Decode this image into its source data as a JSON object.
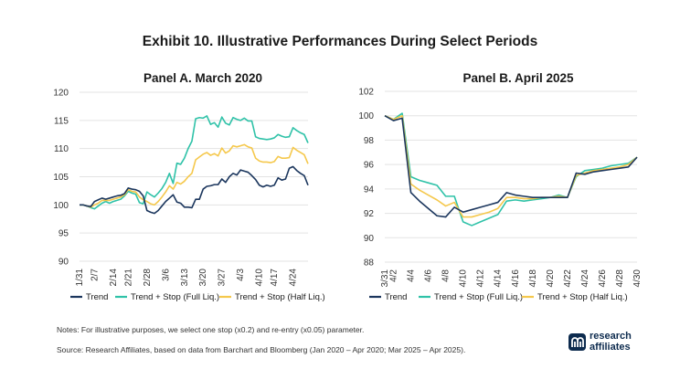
{
  "title": "Exhibit 10. Illustrative Performances During Select Periods",
  "colors": {
    "trend": "#1b365d",
    "full": "#2fc2a8",
    "half": "#f5c84c",
    "grid": "#e3e3e3"
  },
  "legend": {
    "trend": "Trend",
    "full": "Trend + Stop (Full Liq.)",
    "half": "Trend + Stop (Half Liq.)"
  },
  "notes": {
    "line1": "Notes: For illustrative purposes, we select one stop (x0.2) and re-entry (x0.05) parameter.",
    "line2": "Source: Research Affiliates, based on data from Barchart and Bloomberg (Jan 2020 – Apr 2020; Mar 2025 – Apr 2025)."
  },
  "logo": {
    "line1": "research",
    "line2": "affiliates",
    "icon": "research-affiliates-logo-icon"
  },
  "chart_data": [
    {
      "type": "line",
      "title": "Panel A. March 2020",
      "ylim": [
        90,
        120
      ],
      "yticks": [
        90,
        95,
        100,
        105,
        110,
        115,
        120
      ],
      "xticks": [
        {
          "i": 0,
          "label": "1/31"
        },
        {
          "i": 4,
          "label": "2/7"
        },
        {
          "i": 9,
          "label": "2/14"
        },
        {
          "i": 13,
          "label": "2/21"
        },
        {
          "i": 18,
          "label": "2/28"
        },
        {
          "i": 23,
          "label": "3/6"
        },
        {
          "i": 28,
          "label": "3/13"
        },
        {
          "i": 33,
          "label": "3/20"
        },
        {
          "i": 38,
          "label": "3/27"
        },
        {
          "i": 43,
          "label": "4/3"
        },
        {
          "i": 48,
          "label": "4/10"
        },
        {
          "i": 52,
          "label": "4/17"
        },
        {
          "i": 57,
          "label": "4/24"
        }
      ],
      "n": 62,
      "series": [
        {
          "key": "trend",
          "name": "Trend",
          "values": [
            100,
            100,
            99.8,
            99.7,
            100.6,
            100.9,
            101.2,
            101,
            101.2,
            101.4,
            101.6,
            101.7,
            102,
            103,
            102.8,
            102.7,
            102.4,
            101.6,
            99,
            98.7,
            98.5,
            99,
            99.8,
            100.6,
            101.2,
            101.8,
            100.5,
            100.3,
            99.6,
            99.6,
            99.5,
            101,
            101,
            102.8,
            103.3,
            103.4,
            103.6,
            103.6,
            104.6,
            104,
            105,
            105.6,
            105.3,
            106.2,
            106,
            105.8,
            105.2,
            104.5,
            103.5,
            103.2,
            103.5,
            103.3,
            103.5,
            104.8,
            104.4,
            104.6,
            106.5,
            106.8,
            106.1,
            105.6,
            105.2,
            103.5
          ]
        },
        {
          "key": "full",
          "name": "Trend + Stop (Full Liq.)",
          "values": [
            100,
            100,
            99.8,
            99.5,
            99.3,
            99.8,
            100.3,
            100.6,
            100.3,
            100.6,
            100.8,
            101,
            101.6,
            102.4,
            102.1,
            101.9,
            100.4,
            100.2,
            102.3,
            101.8,
            101.4,
            102.1,
            102.9,
            104,
            105.6,
            103.8,
            107.4,
            107.2,
            108.3,
            110,
            111.3,
            115.3,
            115.5,
            115.4,
            115.8,
            114.3,
            114.6,
            113.8,
            115.6,
            114.5,
            114.2,
            115.5,
            115.2,
            115,
            115.4,
            114.9,
            114.9,
            112.1,
            111.8,
            111.7,
            111.6,
            111.7,
            111.9,
            112.5,
            112.2,
            112,
            112.1,
            113.7,
            113.2,
            112.8,
            112.5,
            111
          ]
        },
        {
          "key": "half",
          "name": "Trend + Stop (Half Liq.)",
          "values": [
            100,
            100,
            99.8,
            99.6,
            100,
            100.3,
            100.8,
            100.8,
            100.8,
            101,
            101.2,
            101.4,
            101.8,
            102.7,
            102.4,
            102.3,
            101.4,
            100.9,
            100.6,
            100.2,
            100,
            100.6,
            101.4,
            102.3,
            103.4,
            102.8,
            104,
            103.7,
            104.2,
            105,
            105.6,
            108,
            108.5,
            109,
            109.3,
            108.8,
            109.1,
            108.7,
            110.1,
            109.2,
            109.6,
            110.5,
            110.3,
            110.5,
            110.7,
            110.3,
            110.1,
            108.3,
            107.8,
            107.6,
            107.6,
            107.5,
            107.7,
            108.6,
            108.3,
            108.3,
            108.4,
            110.2,
            109.7,
            109.3,
            108.9,
            107.3
          ]
        }
      ]
    },
    {
      "type": "line",
      "title": "Panel B. April 2025",
      "ylim": [
        88,
        102
      ],
      "yticks": [
        88,
        90,
        92,
        94,
        96,
        98,
        100,
        102
      ],
      "xticks": [
        {
          "i": 0,
          "label": "3/31"
        },
        {
          "i": 1,
          "label": "4/2"
        },
        {
          "i": 3,
          "label": "4/4"
        },
        {
          "i": 5,
          "label": "4/6"
        },
        {
          "i": 7,
          "label": "4/8"
        },
        {
          "i": 9,
          "label": "4/10"
        },
        {
          "i": 11,
          "label": "4/12"
        },
        {
          "i": 13,
          "label": "4/14"
        },
        {
          "i": 15,
          "label": "4/16"
        },
        {
          "i": 17,
          "label": "4/18"
        },
        {
          "i": 19,
          "label": "4/20"
        },
        {
          "i": 21,
          "label": "4/22"
        },
        {
          "i": 23,
          "label": "4/24"
        },
        {
          "i": 25,
          "label": "4/26"
        },
        {
          "i": 27,
          "label": "4/28"
        },
        {
          "i": 29,
          "label": "4/30"
        }
      ],
      "n": 30,
      "series": [
        {
          "key": "trend",
          "name": "Trend",
          "values": [
            100,
            99.6,
            99.8,
            93.7,
            93,
            92.4,
            91.8,
            91.7,
            92.5,
            92.1,
            92.3,
            92.5,
            92.7,
            92.9,
            93.7,
            93.5,
            93.4,
            93.3,
            93.3,
            93.3,
            93.3,
            93.3,
            95.3,
            95.2,
            95.4,
            95.5,
            95.6,
            95.7,
            95.8,
            96.6
          ]
        },
        {
          "key": "full",
          "name": "Trend + Stop (Full Liq.)",
          "values": [
            100,
            99.7,
            100.2,
            95,
            94.7,
            94.5,
            94.3,
            93.4,
            93.4,
            91.3,
            91,
            91.3,
            91.6,
            91.9,
            93,
            93.1,
            93,
            93.1,
            93.2,
            93.3,
            93.5,
            93.3,
            95,
            95.5,
            95.6,
            95.7,
            95.9,
            96,
            96.1,
            96.6
          ]
        },
        {
          "key": "half",
          "name": "Trend + Stop (Half Liq.)",
          "values": [
            100,
            99.7,
            100,
            94.4,
            93.9,
            93.5,
            93.1,
            92.6,
            92.9,
            91.7,
            91.7,
            91.9,
            92.1,
            92.4,
            93.3,
            93.3,
            93.2,
            93.2,
            93.3,
            93.3,
            93.4,
            93.3,
            95.1,
            95.3,
            95.5,
            95.6,
            95.7,
            95.8,
            96,
            96.6
          ]
        }
      ]
    }
  ]
}
